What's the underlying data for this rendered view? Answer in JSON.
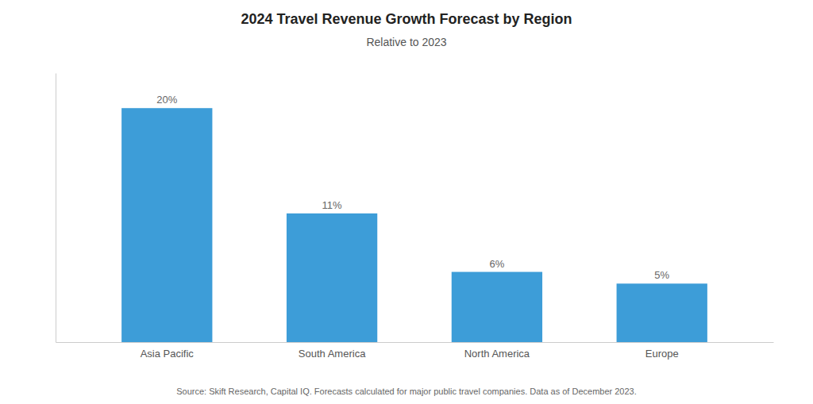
{
  "chart_data": {
    "type": "bar",
    "title": "2024 Travel Revenue Growth Forecast by Region",
    "subtitle": "Relative to 2023",
    "source": "Source: Skift Research, Capital IQ. Forecasts calculated for major public travel companies. Data as of December 2023.",
    "categories": [
      "Asia Pacific",
      "South America",
      "North America",
      "Europe"
    ],
    "values": [
      20,
      11,
      6,
      5
    ],
    "value_labels": [
      "20%",
      "11%",
      "6%",
      "5%"
    ],
    "data_labels": true,
    "color": "#3d9dd8",
    "ylim": [
      0,
      23
    ],
    "tick_labels": "x"
  }
}
